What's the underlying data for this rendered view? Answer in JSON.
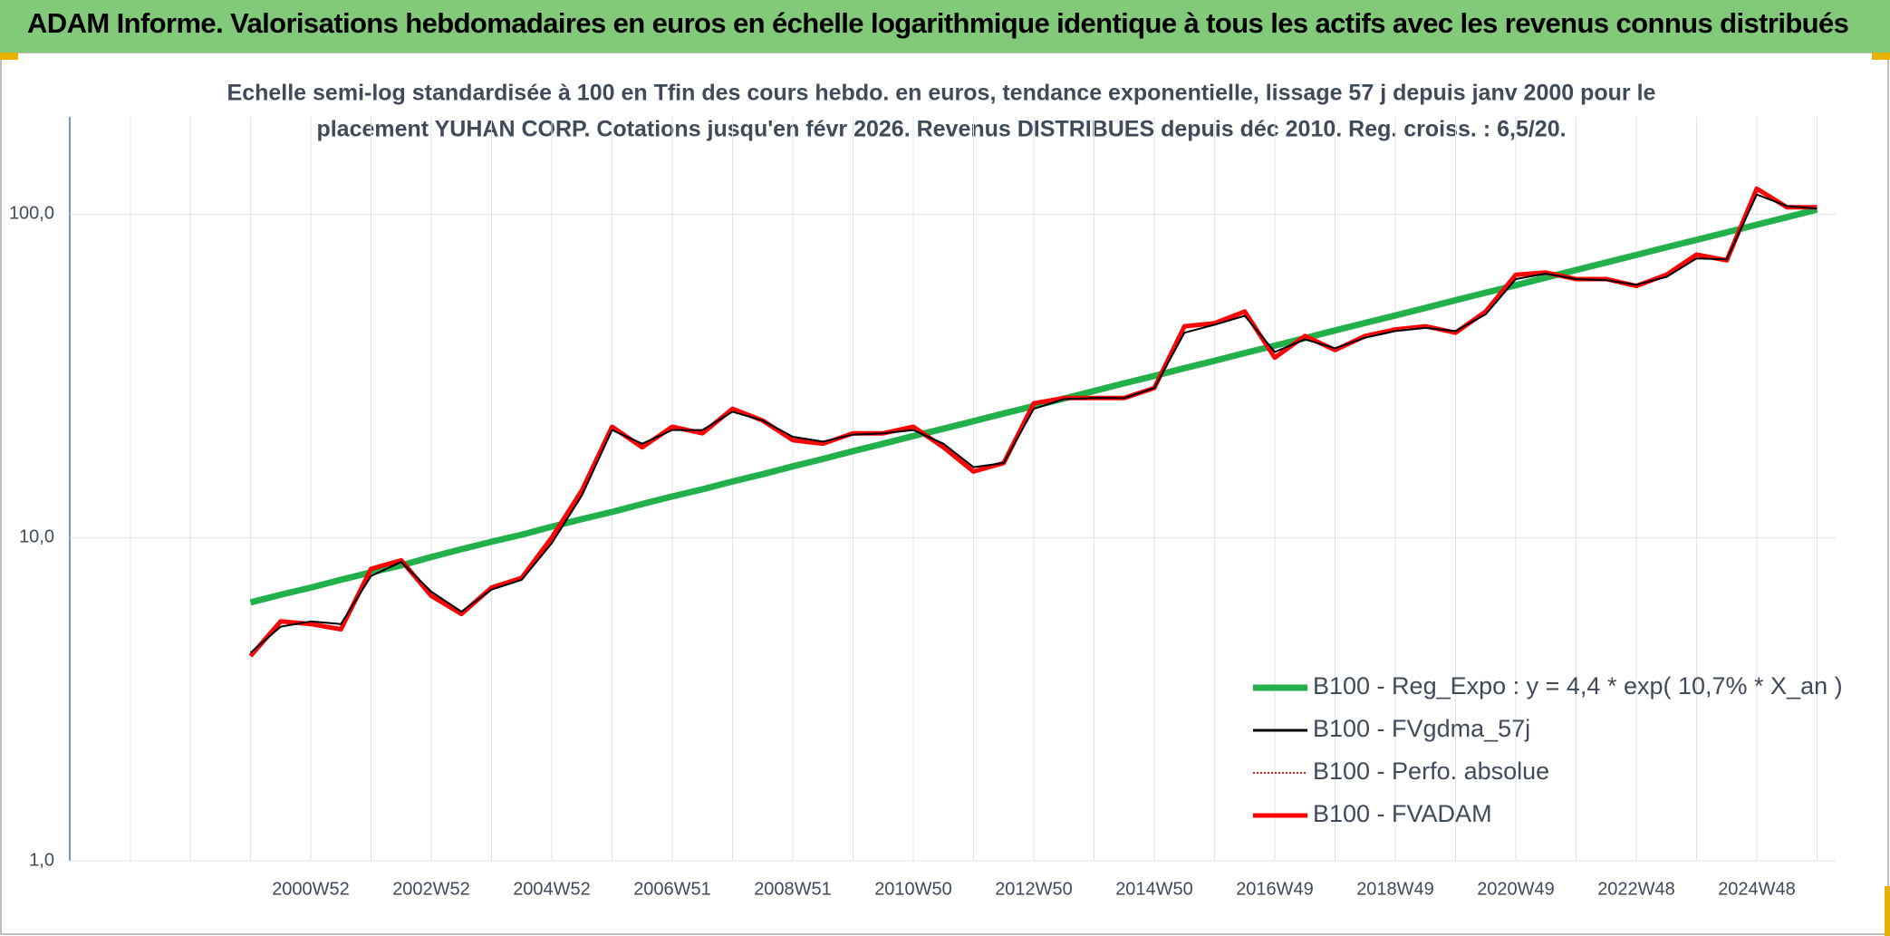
{
  "header": {
    "title": "ADAM Informe. Valorisations hebdomadaires en euros en échelle logarithmique identique à tous les actifs avec les revenus connus distribués"
  },
  "chart_data": {
    "type": "line",
    "subtitle": [
      "Echelle semi-log standardisée à 100 en Tfin des cours hebdo. en euros, tendance exponentielle, lissage 57 j depuis janv 2000 pour le",
      "placement YUHAN CORP. Cotations jusqu'en févr 2026. Revenus DISTRIBUES depuis déc 2010. Reg. croiss. : 6,5/20."
    ],
    "log_scale": true,
    "grid": true,
    "legend": "right",
    "categories": [
      null,
      null,
      "2000W52",
      null,
      null,
      null,
      "2002W52",
      null,
      null,
      null,
      "2004W52",
      null,
      null,
      null,
      "2006W51",
      null,
      null,
      null,
      "2008W51",
      null,
      null,
      null,
      "2010W50",
      null,
      null,
      null,
      "2012W50",
      null,
      null,
      null,
      "2014W50",
      null,
      null,
      null,
      "2016W49",
      null,
      null,
      null,
      "2018W49",
      null,
      null,
      null,
      "2020W49",
      null,
      null,
      null,
      "2022W48",
      null,
      null,
      null,
      "2024W48",
      null,
      null
    ],
    "ylim": [
      1,
      200
    ],
    "yticks": [
      {
        "value": 1,
        "label": "1,0"
      },
      {
        "value": 10,
        "label": "10,0"
      },
      {
        "value": 100,
        "label": "100,0"
      }
    ],
    "series": [
      {
        "name": "B100 - Reg_Expo : y = 4,4 * exp( 10,7% *  X_an )",
        "color": "#22b04a",
        "line_style": "solid",
        "values": [
          6.3,
          6.65,
          7.0,
          7.4,
          7.8,
          8.2,
          8.7,
          9.2,
          9.7,
          10.2,
          10.8,
          11.4,
          12.0,
          12.7,
          13.4,
          14.1,
          14.9,
          15.7,
          16.6,
          17.5,
          18.5,
          19.5,
          20.6,
          21.7,
          22.9,
          24.2,
          25.5,
          26.9,
          28.4,
          30.0,
          31.6,
          33.4,
          35.2,
          37.2,
          39.2,
          41.4,
          43.7,
          46.1,
          48.6,
          51.3,
          54.2,
          57.2,
          60.3,
          63.7,
          67.2,
          70.9,
          74.8,
          79.0,
          83.3,
          87.9,
          92.8,
          97.9,
          103.3
        ]
      },
      {
        "name": "B100 - FVgdma_57j",
        "color": "#000000",
        "line_style": "solid",
        "values": [
          4.4,
          5.3,
          5.5,
          5.4,
          7.6,
          8.4,
          6.8,
          5.9,
          6.9,
          7.4,
          9.6,
          13.5,
          21.5,
          19.5,
          21.5,
          21.5,
          24.5,
          23.0,
          20.5,
          19.8,
          20.8,
          21.0,
          21.5,
          19.5,
          16.5,
          17.0,
          25.0,
          26.8,
          27.0,
          27.0,
          29.0,
          43.0,
          45.5,
          48.5,
          37.5,
          41.0,
          38.5,
          41.5,
          43.5,
          44.5,
          43.5,
          49.0,
          63.0,
          65.5,
          63.0,
          62.5,
          60.5,
          64.0,
          73.0,
          72.5,
          115,
          106,
          104
        ]
      },
      {
        "name": "B100 - Perfo. absolue",
        "color": "#e8141b",
        "line_style": "dotted",
        "values": [
          4.3,
          5.5,
          5.4,
          5.2,
          8.0,
          8.5,
          6.6,
          5.8,
          7.0,
          7.5,
          10.0,
          14,
          22,
          19,
          22,
          21,
          25,
          23,
          20,
          19.5,
          21,
          21,
          22,
          19,
          16,
          17,
          26,
          27,
          27,
          27,
          29,
          45,
          46,
          50,
          36,
          42,
          38,
          42,
          44,
          45,
          43,
          50,
          65,
          66,
          63,
          63,
          60,
          65,
          75,
          72,
          120,
          105,
          105
        ]
      },
      {
        "name": "B100 - FVADAM",
        "color": "#ff0000",
        "line_style": "solid",
        "values": [
          4.3,
          5.5,
          5.4,
          5.2,
          8.0,
          8.5,
          6.6,
          5.8,
          7.0,
          7.5,
          10.0,
          14,
          22,
          19,
          22,
          21,
          25,
          23,
          20,
          19.5,
          21,
          21,
          22,
          19,
          16,
          17,
          26,
          27,
          27,
          27,
          29,
          45,
          46,
          50,
          36,
          42,
          38,
          42,
          44,
          45,
          43,
          50,
          65,
          66,
          63,
          63,
          60,
          65,
          75,
          72,
          120,
          105,
          105
        ]
      }
    ]
  }
}
